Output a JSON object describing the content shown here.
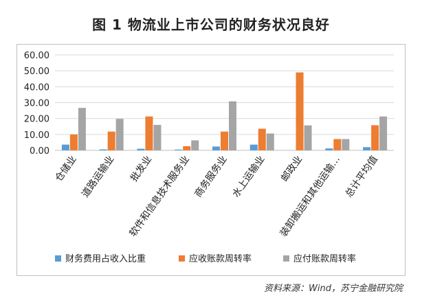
{
  "title": "图 1  物流业上市公司的财务状况良好",
  "source": "资料来源：Wind，苏宁金融研究院",
  "chart_data": {
    "type": "bar",
    "title": "图 1  物流业上市公司的财务状况良好",
    "xlabel": "",
    "ylabel": "",
    "ylim": [
      0,
      60
    ],
    "yticks": [
      "0.00",
      "10.00",
      "20.00",
      "30.00",
      "40.00",
      "50.00",
      "60.00"
    ],
    "grid": true,
    "legend_position": "bottom",
    "categories": [
      "仓储业",
      "道路运输业",
      "批发业",
      "软件和信息技术服务业",
      "商务服务业",
      "水上运输业",
      "邮政业",
      "装卸搬运和其他运输…",
      "总计平均值"
    ],
    "series": [
      {
        "name": "财务费用占收入比重",
        "color": "#5b9bd5",
        "values": [
          3.6,
          0.6,
          1.0,
          0.5,
          2.4,
          3.6,
          0.0,
          1.2,
          2.0
        ]
      },
      {
        "name": "应收账款周转率",
        "color": "#ed7d31",
        "values": [
          10.0,
          11.8,
          21.3,
          2.6,
          11.8,
          13.6,
          49.0,
          7.1,
          15.8
        ]
      },
      {
        "name": "应付账款周转率",
        "color": "#a5a5a5",
        "values": [
          26.7,
          19.8,
          16.0,
          6.3,
          30.8,
          10.6,
          15.7,
          7.1,
          21.3
        ]
      }
    ]
  }
}
